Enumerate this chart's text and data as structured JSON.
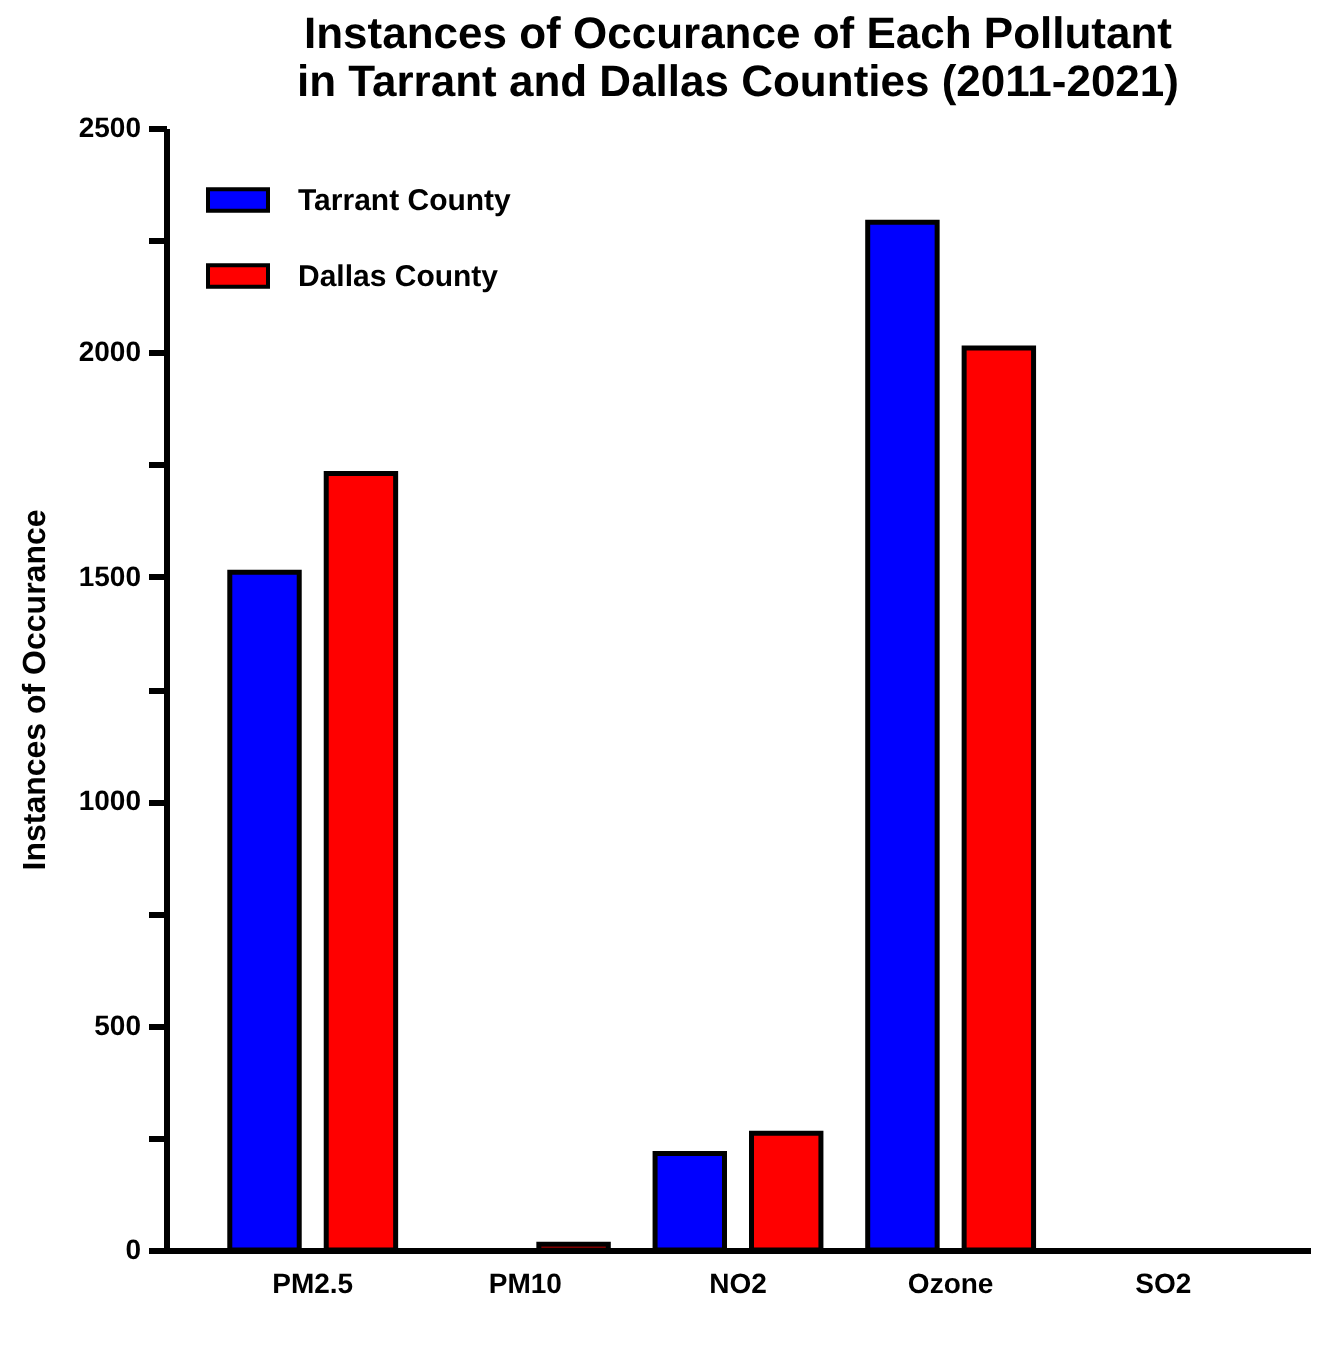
{
  "chart_data": {
    "type": "bar",
    "title": [
      "Instances of Occurance of Each Pollutant",
      "in Tarrant and Dallas Counties (2011-2021)"
    ],
    "ylabel": "Instances of Occurance",
    "categories": [
      "PM2.5",
      "PM10",
      "NO2",
      "Ozone",
      "SO2"
    ],
    "series": [
      {
        "name": "Tarrant County",
        "color": "#0000ff",
        "values": [
          1510,
          null,
          215,
          2290,
          0
        ]
      },
      {
        "name": "Dallas County",
        "color": "#ff0000",
        "values": [
          1730,
          13,
          260,
          2010,
          0
        ]
      }
    ],
    "ylim": [
      0,
      2500
    ],
    "yticks": [
      0,
      {
        "value": 250,
        "label": null
      },
      500,
      {
        "value": 750,
        "label": null
      },
      1000,
      {
        "value": 1250,
        "label": null
      },
      1500,
      {
        "value": 1750,
        "label": null
      },
      2000,
      {
        "value": 2250,
        "label": null
      },
      2500
    ],
    "grid": false,
    "legend": "top left"
  }
}
